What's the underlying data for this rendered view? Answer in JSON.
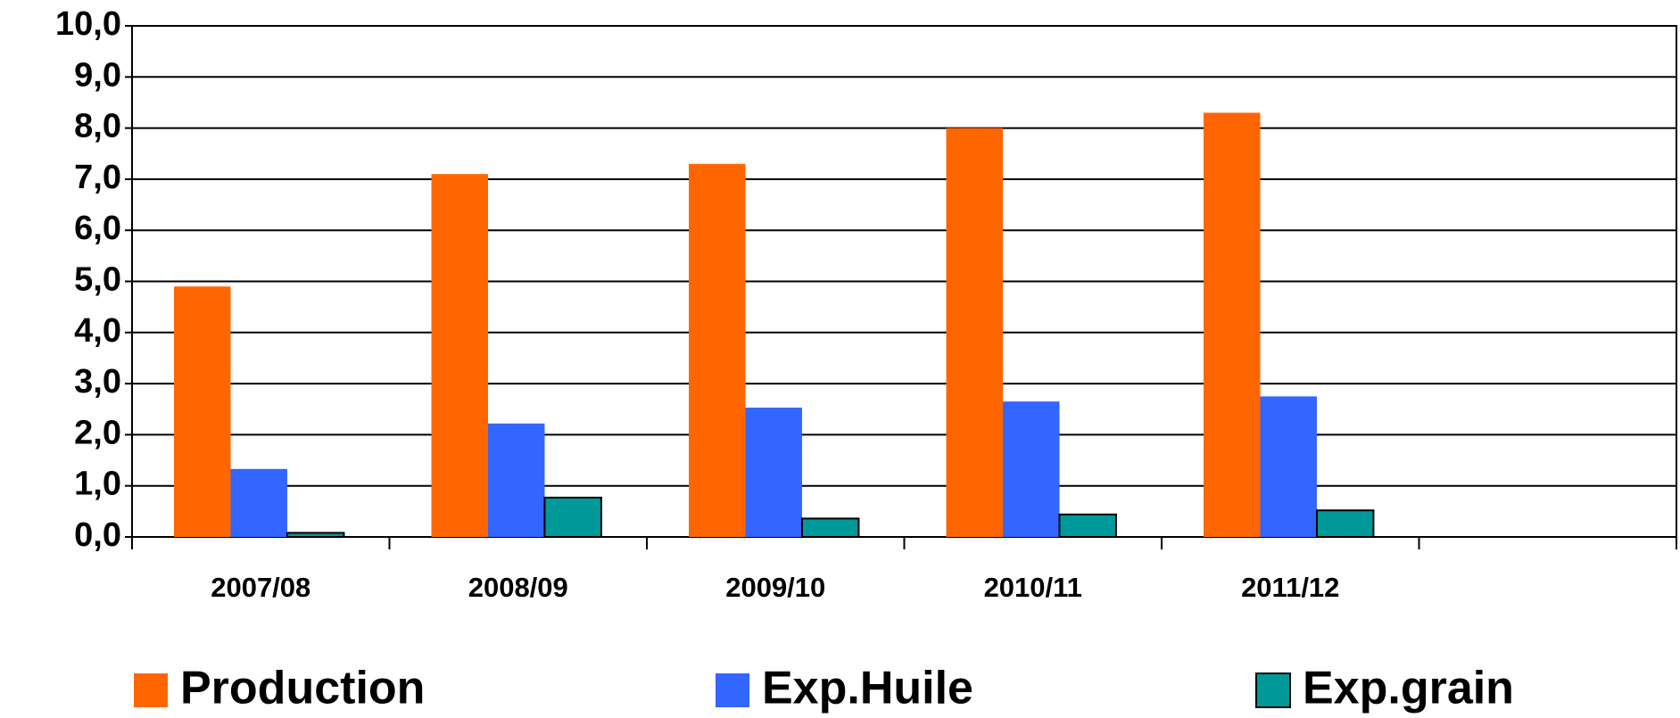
{
  "chart_data": {
    "type": "bar",
    "categories": [
      "2007/08",
      "2008/09",
      "2009/10",
      "2010/11",
      "2011/12",
      null
    ],
    "series": [
      {
        "name": "Production",
        "color": "#ff6600",
        "values": [
          4.9,
          7.1,
          7.3,
          8.0,
          8.3,
          null
        ]
      },
      {
        "name": "Exp.Huile",
        "color": "#3366ff",
        "values": [
          1.33,
          2.22,
          2.53,
          2.65,
          2.75,
          null
        ]
      },
      {
        "name": "Exp.grain",
        "color": "#009999",
        "values": [
          0.08,
          0.77,
          0.36,
          0.44,
          0.52,
          null
        ]
      }
    ],
    "ylim": [
      0,
      10
    ],
    "yticks": [
      {
        "value": 0,
        "label": "0,0"
      },
      {
        "value": 1,
        "label": "1,0"
      },
      {
        "value": 2,
        "label": "2,0"
      },
      {
        "value": 3,
        "label": "3,0"
      },
      {
        "value": 4,
        "label": "4,0"
      },
      {
        "value": 5,
        "label": "5,0"
      },
      {
        "value": 6,
        "label": "6,0"
      },
      {
        "value": 7,
        "label": "7,0"
      },
      {
        "value": 8,
        "label": "8,0"
      },
      {
        "value": 9,
        "label": "9,0"
      },
      {
        "value": 10,
        "label": "10,0"
      }
    ],
    "grid": true,
    "legend": "bottom"
  }
}
